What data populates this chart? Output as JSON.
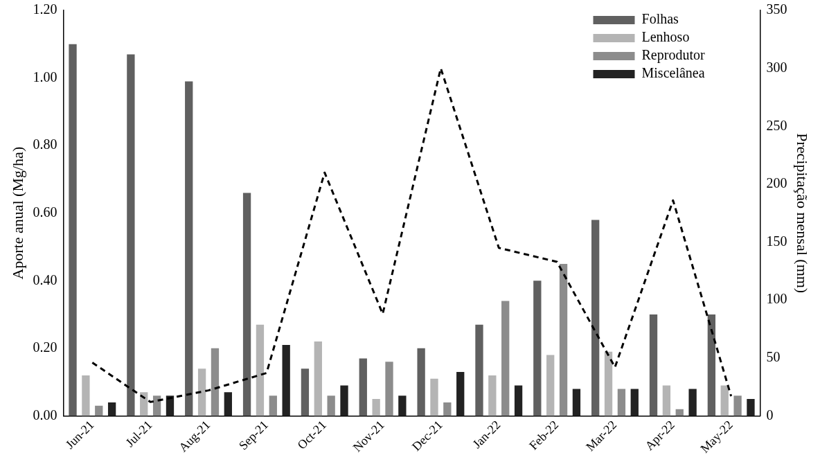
{
  "chart_data": {
    "type": "bar",
    "ylabel": "Aporte anual (Mg/ha)",
    "y2label": "Precipitação mensal (mm)",
    "categories": [
      "Jun-21",
      "Jul-21",
      "Aug-21",
      "Sep-21",
      "Oct-21",
      "Nov-21",
      "Dec-21",
      "Jan-22",
      "Feb-22",
      "Mar-22",
      "Apr-22",
      "May-22"
    ],
    "series": [
      {
        "name": "Folhas",
        "color": "#606060",
        "values": [
          1.1,
          1.07,
          0.99,
          0.66,
          0.14,
          0.17,
          0.2,
          0.27,
          0.4,
          0.58,
          0.3,
          0.3
        ]
      },
      {
        "name": "Lenhoso",
        "color": "#b4b4b4",
        "values": [
          0.12,
          0.07,
          0.14,
          0.27,
          0.22,
          0.05,
          0.11,
          0.12,
          0.18,
          0.19,
          0.09,
          0.09
        ]
      },
      {
        "name": "Reprodutor",
        "color": "#8c8c8c",
        "values": [
          0.03,
          0.06,
          0.2,
          0.06,
          0.06,
          0.16,
          0.04,
          0.34,
          0.45,
          0.08,
          0.02,
          0.06
        ]
      },
      {
        "name": "Miscelânea",
        "color": "#222222",
        "values": [
          0.04,
          0.06,
          0.07,
          0.21,
          0.09,
          0.06,
          0.13,
          0.09,
          0.08,
          0.08,
          0.08,
          0.05
        ]
      },
      {
        "type": "line",
        "axis": "y2",
        "color": "#000000",
        "line_style": "dashed",
        "marker": "none",
        "values": [
          46,
          12,
          22,
          37,
          210,
          88,
          300,
          145,
          133,
          42,
          186,
          17
        ]
      }
    ],
    "ylim": [
      0,
      1.2
    ],
    "yticks": [
      {
        "value": 0,
        "label": "0.00"
      },
      {
        "value": 0.2,
        "label": "0.20"
      },
      {
        "value": 0.4,
        "label": "0.40"
      },
      {
        "value": 0.6,
        "label": "0.60"
      },
      {
        "value": 0.8,
        "label": "0.80"
      },
      {
        "value": 1,
        "label": "1.00"
      },
      {
        "value": 1.2,
        "label": "1.20"
      }
    ],
    "y2lim": [
      0,
      350
    ],
    "y2ticks": [
      0,
      50,
      100,
      150,
      200,
      250,
      300,
      350
    ],
    "grid": false,
    "legend": "top right"
  }
}
